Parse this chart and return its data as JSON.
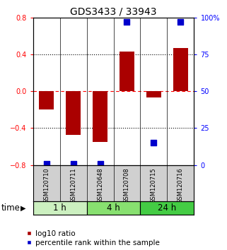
{
  "title": "GDS3433 / 33943",
  "samples": [
    "GSM120710",
    "GSM120711",
    "GSM120648",
    "GSM120708",
    "GSM120715",
    "GSM120716"
  ],
  "log10_ratio": [
    -0.2,
    -0.47,
    -0.55,
    0.43,
    -0.07,
    0.47
  ],
  "percentile_rank": [
    1,
    1,
    1,
    97,
    15,
    97
  ],
  "ylim_left": [
    -0.8,
    0.8
  ],
  "ylim_right": [
    0,
    100
  ],
  "yticks_left": [
    -0.8,
    -0.4,
    0,
    0.4,
    0.8
  ],
  "yticks_right": [
    0,
    25,
    50,
    75,
    100
  ],
  "bar_color": "#aa0000",
  "dot_color": "#0000cc",
  "bar_width": 0.55,
  "dot_size": 28,
  "time_groups": [
    {
      "label": "1 h",
      "indices": [
        0,
        1
      ],
      "color": "#ccf0c0"
    },
    {
      "label": "4 h",
      "indices": [
        2,
        3
      ],
      "color": "#88e070"
    },
    {
      "label": "24 h",
      "indices": [
        4,
        5
      ],
      "color": "#44cc44"
    }
  ],
  "time_label": "time",
  "legend_bar_label": "log10 ratio",
  "legend_dot_label": "percentile rank within the sample",
  "background_color": "#ffffff",
  "sample_box_color": "#d0d0d0",
  "title_fontsize": 10,
  "tick_fontsize": 7,
  "label_fontsize": 6,
  "legend_fontsize": 7.5,
  "time_fontsize": 8.5
}
